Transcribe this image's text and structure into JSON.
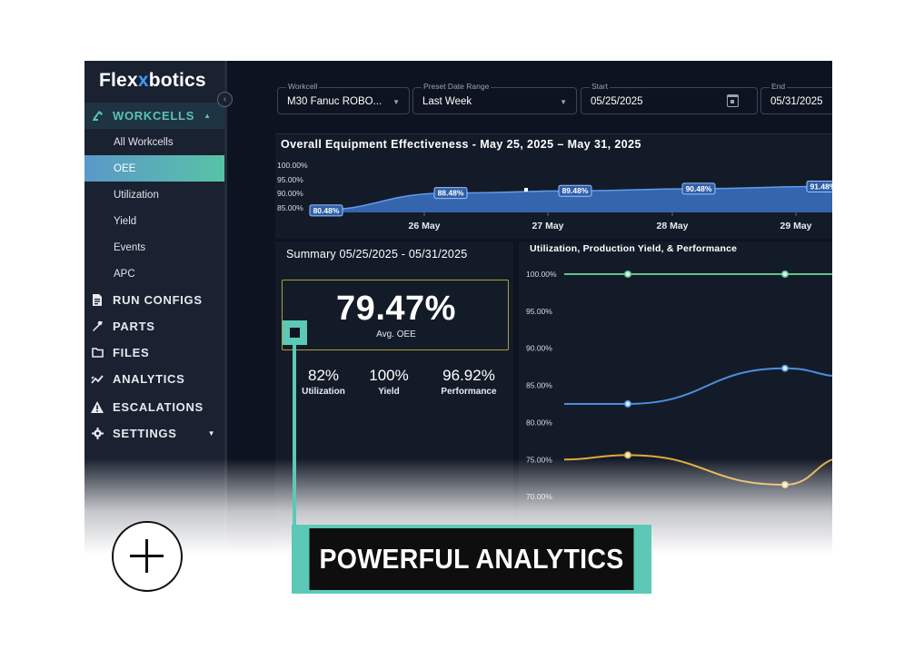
{
  "sidebar": {
    "logo": {
      "part1": "Flex",
      "part2": "x",
      "part3": "botics"
    },
    "groups": [
      {
        "label": "WORKCELLS",
        "icon": "robot-arm-icon",
        "expanded": true
      },
      {
        "label": "RUN CONFIGS",
        "icon": "document-icon"
      },
      {
        "label": "PARTS",
        "icon": "tools-icon"
      },
      {
        "label": "FILES",
        "icon": "folder-icon"
      },
      {
        "label": "ANALYTICS",
        "icon": "analytics-icon"
      },
      {
        "label": "ESCALATIONS",
        "icon": "warning-icon"
      },
      {
        "label": "SETTINGS",
        "icon": "gear-icon"
      }
    ],
    "sub_items": [
      "All Workcells",
      "OEE",
      "Utilization",
      "Yield",
      "Events",
      "APC"
    ],
    "active_sub_item": "OEE"
  },
  "filters": {
    "workcell": {
      "label": "Workcell",
      "value": "M30 Fanuc ROBO..."
    },
    "preset": {
      "label": "Preset Date Range",
      "value": "Last Week"
    },
    "start": {
      "label": "Start",
      "value": "05/25/2025"
    },
    "end": {
      "label": "End",
      "value": "05/31/2025"
    }
  },
  "oee": {
    "title": "Overall Equipment Effectiveness - May 25, 2025 – May 31, 2025"
  },
  "summary": {
    "title": "Summary 05/25/2025 - 05/31/2025",
    "avg_value": "79.47%",
    "avg_label": "Avg. OEE",
    "metrics": [
      {
        "value": "82%",
        "label": "Utilization"
      },
      {
        "value": "100%",
        "label": "Yield"
      },
      {
        "value": "96.92%",
        "label": "Performance"
      }
    ]
  },
  "perf": {
    "title": "Utilization, Production Yield, & Performance"
  },
  "chart_data": [
    {
      "type": "area",
      "title": "Overall Equipment Effectiveness - May 25, 2025 – May 31, 2025",
      "y_ticks": [
        "100.00%",
        "95.00%",
        "90.00%",
        "85.00%"
      ],
      "ylim": [
        85,
        100
      ],
      "x_ticks": [
        "26 May",
        "27 May",
        "28 May",
        "29 May"
      ],
      "x": [
        0,
        1,
        2,
        3,
        4
      ],
      "values": [
        80.48,
        88.48,
        89.48,
        90.48,
        91.48
      ],
      "data_labels": [
        "80.48%",
        "88.48%",
        "89.48%",
        "90.48%",
        "91.48%"
      ],
      "color": "#3f7fd6"
    },
    {
      "type": "line",
      "title": "Utilization, Production Yield, & Performance",
      "y_ticks": [
        "100.00%",
        "95.00%",
        "90.00%",
        "85.00%",
        "80.00%",
        "75.00%",
        "70.00%"
      ],
      "ylim": [
        70,
        100
      ],
      "series": [
        {
          "values": [
            100,
            100,
            100,
            100
          ],
          "color": "#5ec48a"
        },
        {
          "values": [
            82.5,
            82.5,
            87.3,
            86.2
          ],
          "color": "#4c8ee0"
        },
        {
          "values": [
            75,
            75.6,
            71.6,
            75.3
          ],
          "color": "#e3a83a"
        }
      ]
    }
  ],
  "overlay": {
    "banner": "POWERFUL ANALYTICS",
    "plus_icon": "plus-icon",
    "colors": {
      "accent": "#5bc9b5",
      "banner_bg": "#0e0e0e"
    }
  }
}
